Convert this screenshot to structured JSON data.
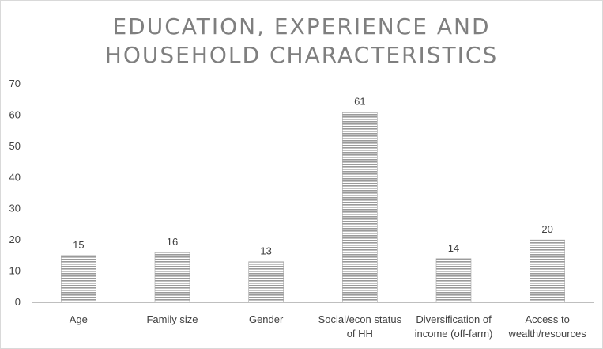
{
  "chart_data": {
    "type": "bar",
    "title_lines": [
      "EDUCATION, EXPERIENCE AND",
      "HOUSEHOLD CHARACTERISTICS"
    ],
    "categories": [
      [
        "Age"
      ],
      [
        "Family size"
      ],
      [
        "Gender"
      ],
      [
        "Social/econ status",
        "of HH"
      ],
      [
        "Diversification of",
        "income (off-farm)"
      ],
      [
        "Access to",
        "wealth/resources"
      ]
    ],
    "values": [
      15,
      16,
      13,
      61,
      14,
      20
    ],
    "data_labels": [
      "15",
      "16",
      "13",
      "61",
      "14",
      "20"
    ],
    "ylim": [
      0,
      70
    ],
    "yticks": [
      0,
      10,
      20,
      30,
      40,
      50,
      60,
      70
    ],
    "grid": false,
    "legend": "none",
    "bar_color": "#a6a6a6",
    "bar_fill_pattern": "horizontal-lines"
  }
}
